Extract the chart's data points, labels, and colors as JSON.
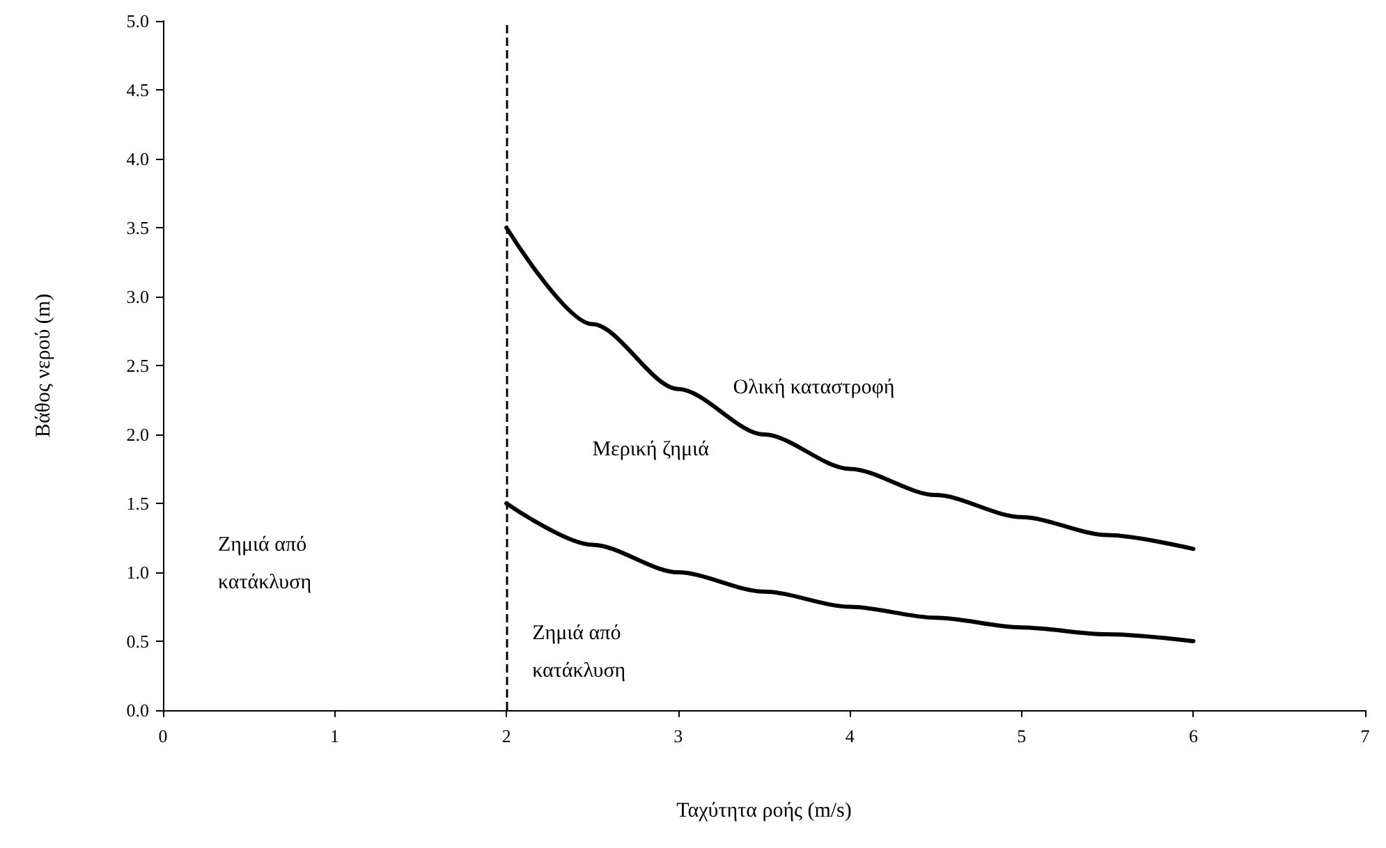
{
  "chart_data": {
    "type": "line",
    "xlabel": "Ταχύτητα ροής (m/s)",
    "ylabel": "Βάθος νερού (m)",
    "xlim": [
      0,
      7
    ],
    "xticks": [
      0,
      1,
      2,
      3,
      4,
      5,
      6,
      7
    ],
    "ylim": [
      0,
      5
    ],
    "yticks": [
      {
        "value": 0,
        "label": "0.0"
      },
      {
        "value": 0.5,
        "label": "0.5"
      },
      {
        "value": 1,
        "label": "1.0"
      },
      {
        "value": 1.5,
        "label": "1.5"
      },
      {
        "value": 2,
        "label": "2.0"
      },
      {
        "value": 2.5,
        "label": "2.5"
      },
      {
        "value": 3,
        "label": "3.0"
      },
      {
        "value": 3.5,
        "label": "3.5"
      },
      {
        "value": 4,
        "label": "4.0"
      },
      {
        "value": 4.5,
        "label": "4.5"
      },
      {
        "value": 5,
        "label": "5.0"
      }
    ],
    "x": [
      2,
      2.5,
      3,
      3.5,
      4,
      4.5,
      5,
      5.5,
      6
    ],
    "series": [
      {
        "color": "#000000",
        "values": [
          3.5,
          2.8,
          2.33,
          2.0,
          1.75,
          1.56,
          1.4,
          1.27,
          1.17
        ]
      },
      {
        "color": "#000000",
        "values": [
          1.5,
          1.2,
          1.0,
          0.86,
          0.75,
          0.67,
          0.6,
          0.55,
          0.5
        ]
      }
    ],
    "ref_lines": [
      {
        "axis": "x",
        "value": 2,
        "color": "#000000",
        "line_style": "dashed"
      }
    ],
    "annotations": [
      "Ολική καταστροφή",
      "Μερική ζημιά",
      "Ζημιά από\nκατάκλυση",
      "Ζημιά από\nκατάκλυση"
    ],
    "grid": false,
    "marker": "none",
    "line_style": "solid"
  }
}
